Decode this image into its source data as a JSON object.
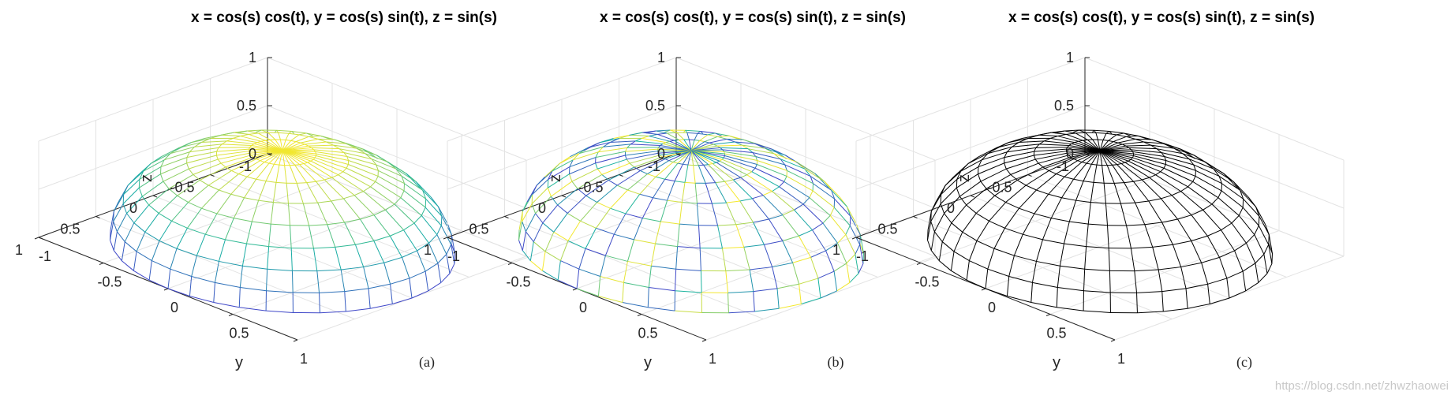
{
  "figure": {
    "watermark": "https://blog.csdn.net/zhwzhaowei"
  },
  "chart_data": [
    {
      "type": "surface-3d",
      "title": "x = cos(s) cos(t), y = cos(s) sin(t), z = sin(s)",
      "xlabel": "",
      "ylabel": "y",
      "zlabel": "z",
      "x_ticks": [
        "-1",
        "-0.5",
        "0",
        "0.5",
        "1"
      ],
      "y_ticks": [
        "-1",
        "-0.5",
        "0",
        "0.5",
        "1"
      ],
      "z_ticks": [
        "0",
        "0.5",
        "1"
      ],
      "xlim": [
        -1,
        1
      ],
      "ylim": [
        -1,
        1
      ],
      "zlim": [
        0,
        1
      ],
      "surface": {
        "s_range": [
          0,
          1.5708
        ],
        "t_range": [
          0,
          6.2832
        ],
        "s_divisions": 8,
        "t_divisions": 40
      },
      "coloring": "height colormap (parula): blue at z=0, yellow at z=1",
      "caption": "(a)",
      "colors": {
        "low": "#3f47c8",
        "mid": "#17b3a2",
        "high": "#f5e82d"
      }
    },
    {
      "type": "surface-3d",
      "title": "x = cos(s) cos(t), y = cos(s) sin(t), z = sin(s)",
      "xlabel": "",
      "ylabel": "y",
      "zlabel": "z",
      "x_ticks": [
        "-1",
        "-0.5",
        "0",
        "0.5",
        "1"
      ],
      "y_ticks": [
        "-1",
        "-0.5",
        "0",
        "0.5",
        "1"
      ],
      "z_ticks": [
        "0",
        "0.5",
        "1"
      ],
      "xlim": [
        -1,
        1
      ],
      "ylim": [
        -1,
        1
      ],
      "zlim": [
        0,
        1
      ],
      "surface": {
        "s_range": [
          0,
          1.5708
        ],
        "t_range": [
          0,
          6.2832
        ],
        "s_divisions": 8,
        "t_divisions": 40
      },
      "coloring": "mixed colormap mesh lines (parula colors varying along edges)",
      "caption": "(b)",
      "colors": {
        "low": "#3f47c8",
        "mid": "#17b3a2",
        "high": "#f5e82d"
      }
    },
    {
      "type": "surface-3d",
      "title": "x = cos(s) cos(t), y = cos(s) sin(t), z = sin(s)",
      "xlabel": "",
      "ylabel": "y",
      "zlabel": "z",
      "x_ticks": [
        "-1",
        "-0.5",
        "0",
        "0.5",
        "1"
      ],
      "y_ticks": [
        "-1",
        "-0.5",
        "0",
        "0.5",
        "1"
      ],
      "z_ticks": [
        "0",
        "0.5",
        "1"
      ],
      "xlim": [
        -1,
        1
      ],
      "ylim": [
        -1,
        1
      ],
      "zlim": [
        0,
        1
      ],
      "surface": {
        "s_range": [
          0,
          1.5708
        ],
        "t_range": [
          0,
          6.2832
        ],
        "s_divisions": 8,
        "t_divisions": 40
      },
      "coloring": "black mesh lines",
      "caption": "(c)",
      "colors": {
        "low": "#000000",
        "mid": "#000000",
        "high": "#000000"
      }
    }
  ]
}
